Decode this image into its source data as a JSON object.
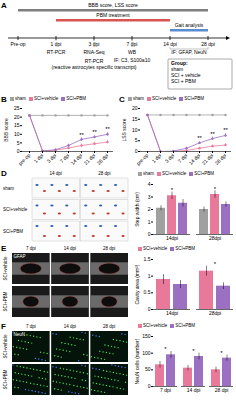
{
  "timeline": {
    "panel": "A",
    "time_points": [
      "Pre-op",
      "1 dpi",
      "3 dpi",
      "7 dpi",
      "14 dpi",
      "28 dpi"
    ],
    "periods": [
      {
        "label": "BBB score, LSS score",
        "from": "Pre-op",
        "to": "28 dpi"
      },
      {
        "label": "PBM treatment",
        "from": "1 dpi",
        "to": "14 dpi"
      },
      {
        "label": "Gait analysis",
        "from": "14 dpi",
        "to": "28 dpi"
      }
    ],
    "assays": [
      {
        "lines": [
          "RT-PCR"
        ],
        "at": "1 dpi"
      },
      {
        "lines": [
          "RNA-Seq"
        ],
        "at": "3 dpi"
      },
      {
        "lines": [
          "RT-PCR",
          "(reactive astrocytes specific transcript)"
        ],
        "at": "3 dpi"
      },
      {
        "lines": [
          "WB"
        ],
        "at": "7 dpi"
      },
      {
        "lines": [
          "IF: C3, S100a10"
        ],
        "at": "7 dpi"
      },
      {
        "lines": [
          "IF: GFAP, NeuN"
        ],
        "from": "14 dpi",
        "to": "28 dpi"
      }
    ],
    "groups": {
      "title": "Group:",
      "items": [
        "sham",
        "SCI + vehicle",
        "SCI + PBM"
      ]
    }
  },
  "chart_data": [
    {
      "panel": "B",
      "type": "line",
      "ylabel": "BBB score",
      "categories": [
        "pre-op",
        "1 dpi",
        "3 dpi",
        "7 dpi",
        "14 dpi",
        "21 dpi",
        "28 dpi"
      ],
      "ylim": [
        0,
        25
      ],
      "yticks": [
        0,
        5,
        10,
        15,
        20,
        25
      ],
      "legend": "top",
      "marker": "circle",
      "series": [
        {
          "name": "sham",
          "color": "#a0a0a0",
          "values": [
            21,
            21,
            21,
            21,
            21,
            21,
            21
          ],
          "errors": [
            0,
            0,
            0,
            0,
            0,
            0,
            0
          ]
        },
        {
          "name": "SCI+vehicle",
          "color": "#e8799b",
          "values": [
            21,
            0.3,
            0.8,
            2,
            3.5,
            4.5,
            5.5
          ],
          "errors": [
            0,
            0.2,
            0.4,
            0.6,
            0.8,
            0.9,
            1
          ]
        },
        {
          "name": "SCI+PBM",
          "color": "#9b6fc2",
          "values": [
            21,
            0.3,
            1,
            3.5,
            7,
            8.5,
            10
          ],
          "errors": [
            0,
            0.2,
            0.5,
            0.8,
            1,
            1,
            1.1
          ]
        }
      ],
      "annotations": [
        {
          "category": "14 dpi",
          "series": "SCI+PBM",
          "text": "**"
        },
        {
          "category": "21 dpi",
          "series": "SCI+PBM",
          "text": "**"
        },
        {
          "category": "28 dpi",
          "series": "SCI+PBM",
          "text": "**"
        }
      ]
    },
    {
      "panel": "C",
      "type": "line",
      "ylabel": "LSS score",
      "categories": [
        "pre-op",
        "1 dpi",
        "3 dpi",
        "7 dpi",
        "14 dpi",
        "21 dpi",
        "28 dpi"
      ],
      "ylim": [
        0,
        20
      ],
      "yticks": [
        0,
        5,
        10,
        15,
        20
      ],
      "legend": "top",
      "marker": "circle",
      "series": [
        {
          "name": "sham",
          "color": "#a0a0a0",
          "values": [
            17,
            17,
            17,
            17,
            17,
            17,
            17
          ],
          "errors": [
            0,
            0,
            0,
            0,
            0,
            0,
            0
          ]
        },
        {
          "name": "SCI+vehicle",
          "color": "#e8799b",
          "values": [
            17,
            0,
            0,
            0.5,
            1.5,
            2.5,
            3
          ],
          "errors": [
            0,
            0,
            0,
            0.3,
            0.5,
            0.6,
            0.7
          ]
        },
        {
          "name": "SCI+PBM",
          "color": "#9b6fc2",
          "values": [
            17,
            0,
            0.2,
            1.5,
            4,
            6,
            7.5
          ],
          "errors": [
            0,
            0,
            0.2,
            0.5,
            0.7,
            0.8,
            0.9
          ]
        }
      ],
      "annotations": [
        {
          "category": "14 dpi",
          "series": "SCI+PBM",
          "text": "**"
        },
        {
          "category": "21 dpi",
          "series": "SCI+PBM",
          "text": "**"
        },
        {
          "category": "28 dpi",
          "series": "SCI+PBM",
          "text": "**"
        }
      ]
    },
    {
      "type": "bar",
      "ylabel": "Step width (cm)",
      "categories": [
        "14dpi",
        "28dpi"
      ],
      "ylim": [
        0,
        4
      ],
      "yticks": [
        0,
        1,
        2,
        3,
        4
      ],
      "legend": "top",
      "series": [
        {
          "name": "sham",
          "color": "#a0a0a0",
          "values": [
            2.1,
            2.0
          ],
          "errors": [
            0.2,
            0.2
          ]
        },
        {
          "name": "SCI+vehicle",
          "color": "#e8799b",
          "values": [
            3.1,
            3.2
          ],
          "errors": [
            0.3,
            0.3
          ]
        },
        {
          "name": "SCI+PBM",
          "color": "#9b6fc2",
          "values": [
            2.5,
            2.4
          ],
          "errors": [
            0.3,
            0.2
          ]
        }
      ],
      "annotations": [
        {
          "category": "14dpi",
          "text": "*"
        },
        {
          "category": "28dpi",
          "text": "*"
        }
      ]
    },
    {
      "type": "bar",
      "ylabel": "Cavity area (mm²)",
      "categories": [
        "14dpi",
        "28dpi"
      ],
      "ylim": [
        0,
        1.5
      ],
      "yticks": [
        0,
        0.5,
        1,
        1.5
      ],
      "legend": "top",
      "series": [
        {
          "name": "SCI+vehicle",
          "color": "#e8799b",
          "values": [
            0.9,
            1.15
          ],
          "errors": [
            0.15,
            0.15
          ]
        },
        {
          "name": "SCI+PBM",
          "color": "#9b6fc2",
          "values": [
            0.75,
            0.7
          ],
          "errors": [
            0.12,
            0.1
          ]
        }
      ],
      "annotations": [
        {
          "category": "28dpi",
          "text": "*"
        }
      ]
    },
    {
      "type": "bar",
      "ylabel": "NeuN cells (number)",
      "categories": [
        "7 dpi",
        "14 dpi",
        "28 dpi"
      ],
      "ylim": [
        0,
        150
      ],
      "yticks": [
        0,
        50,
        100,
        150
      ],
      "legend": "top",
      "series": [
        {
          "name": "SCI+vehicle",
          "color": "#e8799b",
          "values": [
            65,
            55,
            50
          ],
          "errors": [
            10,
            8,
            8
          ]
        },
        {
          "name": "SCI+PBM",
          "color": "#9b6fc2",
          "values": [
            95,
            90,
            85
          ],
          "errors": [
            10,
            10,
            9
          ]
        }
      ],
      "annotations": [
        {
          "category": "7 dpi",
          "text": "*"
        },
        {
          "category": "14 dpi",
          "text": "*"
        },
        {
          "category": "28 dpi",
          "text": "*"
        }
      ]
    }
  ],
  "image_panels": [
    {
      "panel": "D",
      "columns": [
        "14 dpi",
        "28 dpi"
      ],
      "rows": [
        "sham",
        "SCI+vehicle",
        "SCI+PBM"
      ]
    },
    {
      "panel": "E",
      "stain": "GFAP",
      "columns": [
        "7 dpi",
        "14 dpi",
        "28 dpi"
      ],
      "rows": [
        "SCI+vehicle",
        "SCI+PBM"
      ]
    },
    {
      "panel": "F",
      "stain": "NeuN",
      "columns": [
        "7 dpi",
        "14 dpi",
        "28 dpi"
      ],
      "rows": [
        "SCI+vehicle",
        "SCI+PBM"
      ]
    }
  ]
}
